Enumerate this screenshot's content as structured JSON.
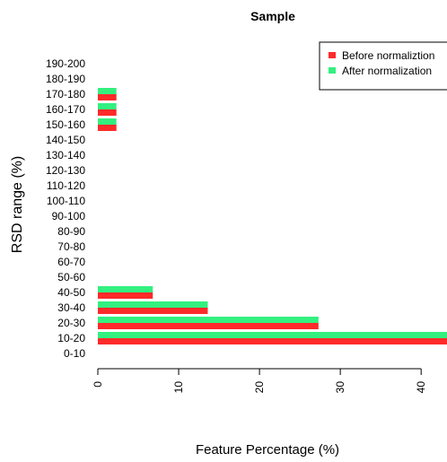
{
  "chart_data": {
    "type": "bar",
    "orientation": "horizontal",
    "title": "Sample",
    "xlabel": "Feature Percentage (%)",
    "ylabel": "RSD range (%)",
    "categories": [
      "0-10",
      "10-20",
      "20-30",
      "30-40",
      "40-50",
      "50-60",
      "60-70",
      "70-80",
      "80-90",
      "90-100",
      "100-110",
      "110-120",
      "120-130",
      "130-140",
      "140-150",
      "150-160",
      "160-170",
      "170-180",
      "180-190",
      "190-200"
    ],
    "series": [
      {
        "name": "Before normaliztion",
        "color": "#ff2a2a",
        "values": [
          0,
          43.2,
          27.3,
          13.6,
          6.8,
          0,
          0,
          0,
          0,
          0,
          0,
          0,
          0,
          0,
          0,
          2.3,
          2.3,
          2.3,
          0,
          0
        ]
      },
      {
        "name": "After normalization",
        "color": "#33f07f",
        "values": [
          0,
          43.2,
          27.3,
          13.6,
          6.8,
          0,
          0,
          0,
          0,
          0,
          0,
          0,
          0,
          0,
          0,
          2.3,
          2.3,
          2.3,
          0,
          0
        ]
      }
    ],
    "xticks": [
      0,
      10,
      20,
      30,
      40
    ],
    "xlim": [
      0,
      43.2
    ],
    "grid": false,
    "legend_position": "top-right"
  }
}
